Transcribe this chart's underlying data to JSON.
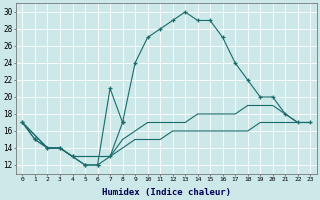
{
  "xlabel": "Humidex (Indice chaleur)",
  "bg_color": "#cce8e8",
  "grid_color": "#ffffff",
  "line_color": "#1a6b6b",
  "ylim": [
    11,
    31
  ],
  "xlim": [
    -0.5,
    23.5
  ],
  "yticks": [
    12,
    14,
    16,
    18,
    20,
    22,
    24,
    26,
    28,
    30
  ],
  "xticks": [
    0,
    1,
    2,
    3,
    4,
    5,
    6,
    7,
    8,
    9,
    10,
    11,
    12,
    13,
    14,
    15,
    16,
    17,
    18,
    19,
    20,
    21,
    22,
    23
  ],
  "line1_x": [
    0,
    1,
    2,
    3,
    4,
    5,
    6,
    7,
    8,
    9,
    10,
    11,
    12,
    13,
    14,
    15,
    16,
    17,
    18,
    19,
    20,
    21,
    22,
    23
  ],
  "line1_y": [
    17,
    15,
    14,
    14,
    13,
    12,
    12,
    13,
    17,
    24,
    27,
    28,
    29,
    30,
    29,
    29,
    27,
    24,
    22,
    20,
    20,
    18,
    17,
    17
  ],
  "line2_x": [
    0,
    1,
    2,
    3,
    4,
    5,
    6,
    7,
    8
  ],
  "line2_y": [
    17,
    15,
    14,
    14,
    13,
    12,
    12,
    21,
    17
  ],
  "line3_x": [
    0,
    2,
    3,
    4,
    5,
    6,
    7,
    8,
    9,
    10,
    11,
    12,
    13,
    14,
    15,
    16,
    17,
    18,
    19,
    20,
    21,
    22,
    23
  ],
  "line3_y": [
    17,
    14,
    14,
    13,
    13,
    13,
    13,
    14,
    15,
    15,
    15,
    16,
    16,
    16,
    16,
    16,
    16,
    16,
    17,
    17,
    17,
    17,
    17
  ],
  "line4_x": [
    0,
    2,
    3,
    4,
    5,
    6,
    7,
    8,
    9,
    10,
    11,
    12,
    13,
    14,
    15,
    16,
    17,
    18,
    19,
    20,
    21,
    22,
    23
  ],
  "line4_y": [
    17,
    14,
    14,
    13,
    13,
    13,
    13,
    15,
    16,
    17,
    17,
    17,
    17,
    18,
    18,
    18,
    18,
    19,
    19,
    19,
    18,
    17,
    17
  ]
}
